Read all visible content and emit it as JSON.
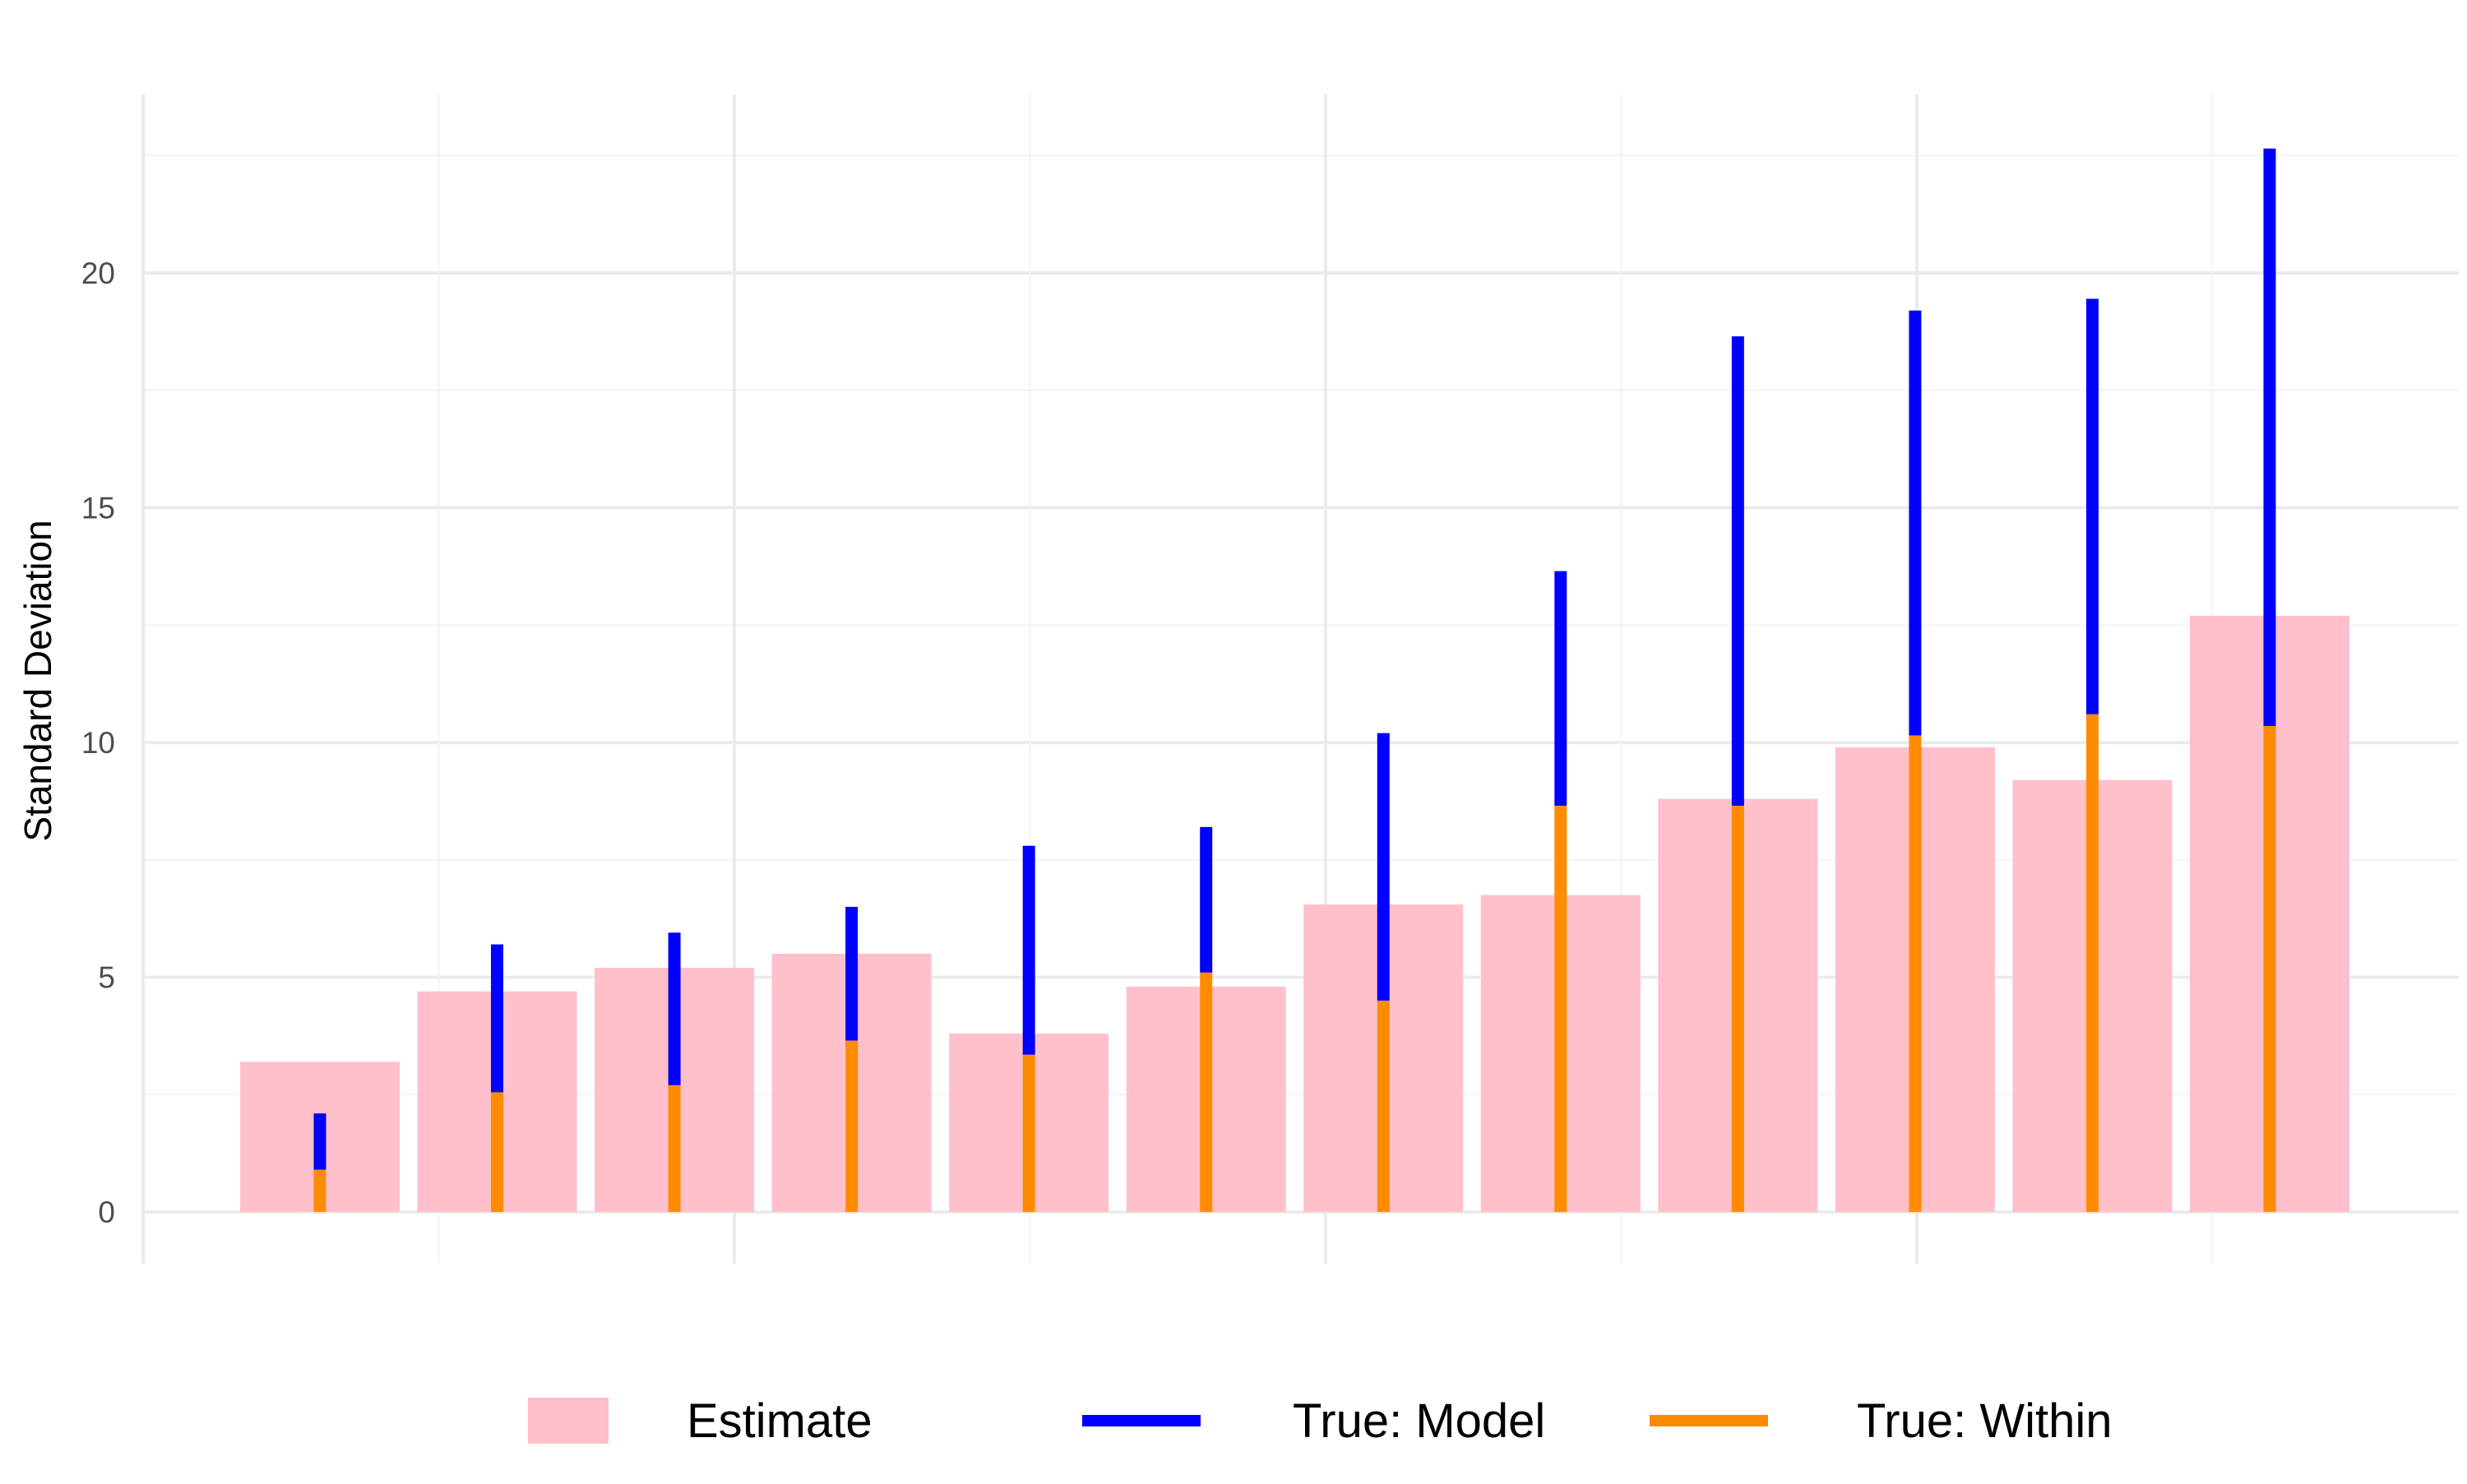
{
  "chart_data": {
    "type": "bar",
    "title": "",
    "xlabel": "",
    "ylabel": "Standard Deviation",
    "ylim": [
      -1.1,
      23.8
    ],
    "y_ticks": [
      0,
      5,
      10,
      15,
      20
    ],
    "y_tick_labels": [
      "0",
      "5",
      "10",
      "15",
      "20"
    ],
    "x_tick_labels": [],
    "grid": true,
    "legend_position": "bottom",
    "colors": {
      "estimate": "#FFC0CB",
      "model": "#0000FF",
      "within": "#FF8C00",
      "grid_major": "#EBEBEB",
      "grid_minor": "#F3F3F3",
      "axis_text": "#4D4D4D",
      "axis_title": "#000000"
    },
    "series": [
      {
        "name": "Estimate",
        "kind": "bar",
        "values": [
          3.2,
          4.7,
          5.2,
          5.5,
          3.8,
          4.8,
          6.55,
          6.75,
          8.8,
          9.9,
          9.2,
          12.7
        ]
      },
      {
        "name": "True: Model",
        "kind": "segment",
        "values": [
          2.1,
          5.7,
          5.95,
          6.5,
          7.8,
          8.2,
          10.2,
          13.65,
          18.65,
          19.2,
          19.45,
          22.65
        ]
      },
      {
        "name": "True: Within",
        "kind": "segment",
        "values": [
          0.9,
          2.55,
          2.7,
          3.65,
          3.35,
          5.1,
          4.5,
          8.65,
          8.65,
          10.15,
          10.6,
          10.35
        ]
      }
    ],
    "legend": [
      {
        "label": "Estimate",
        "key": "estimate",
        "shape": "box"
      },
      {
        "label": "True: Model",
        "key": "model",
        "shape": "line"
      },
      {
        "label": "True: Within",
        "key": "within",
        "shape": "line"
      }
    ]
  }
}
